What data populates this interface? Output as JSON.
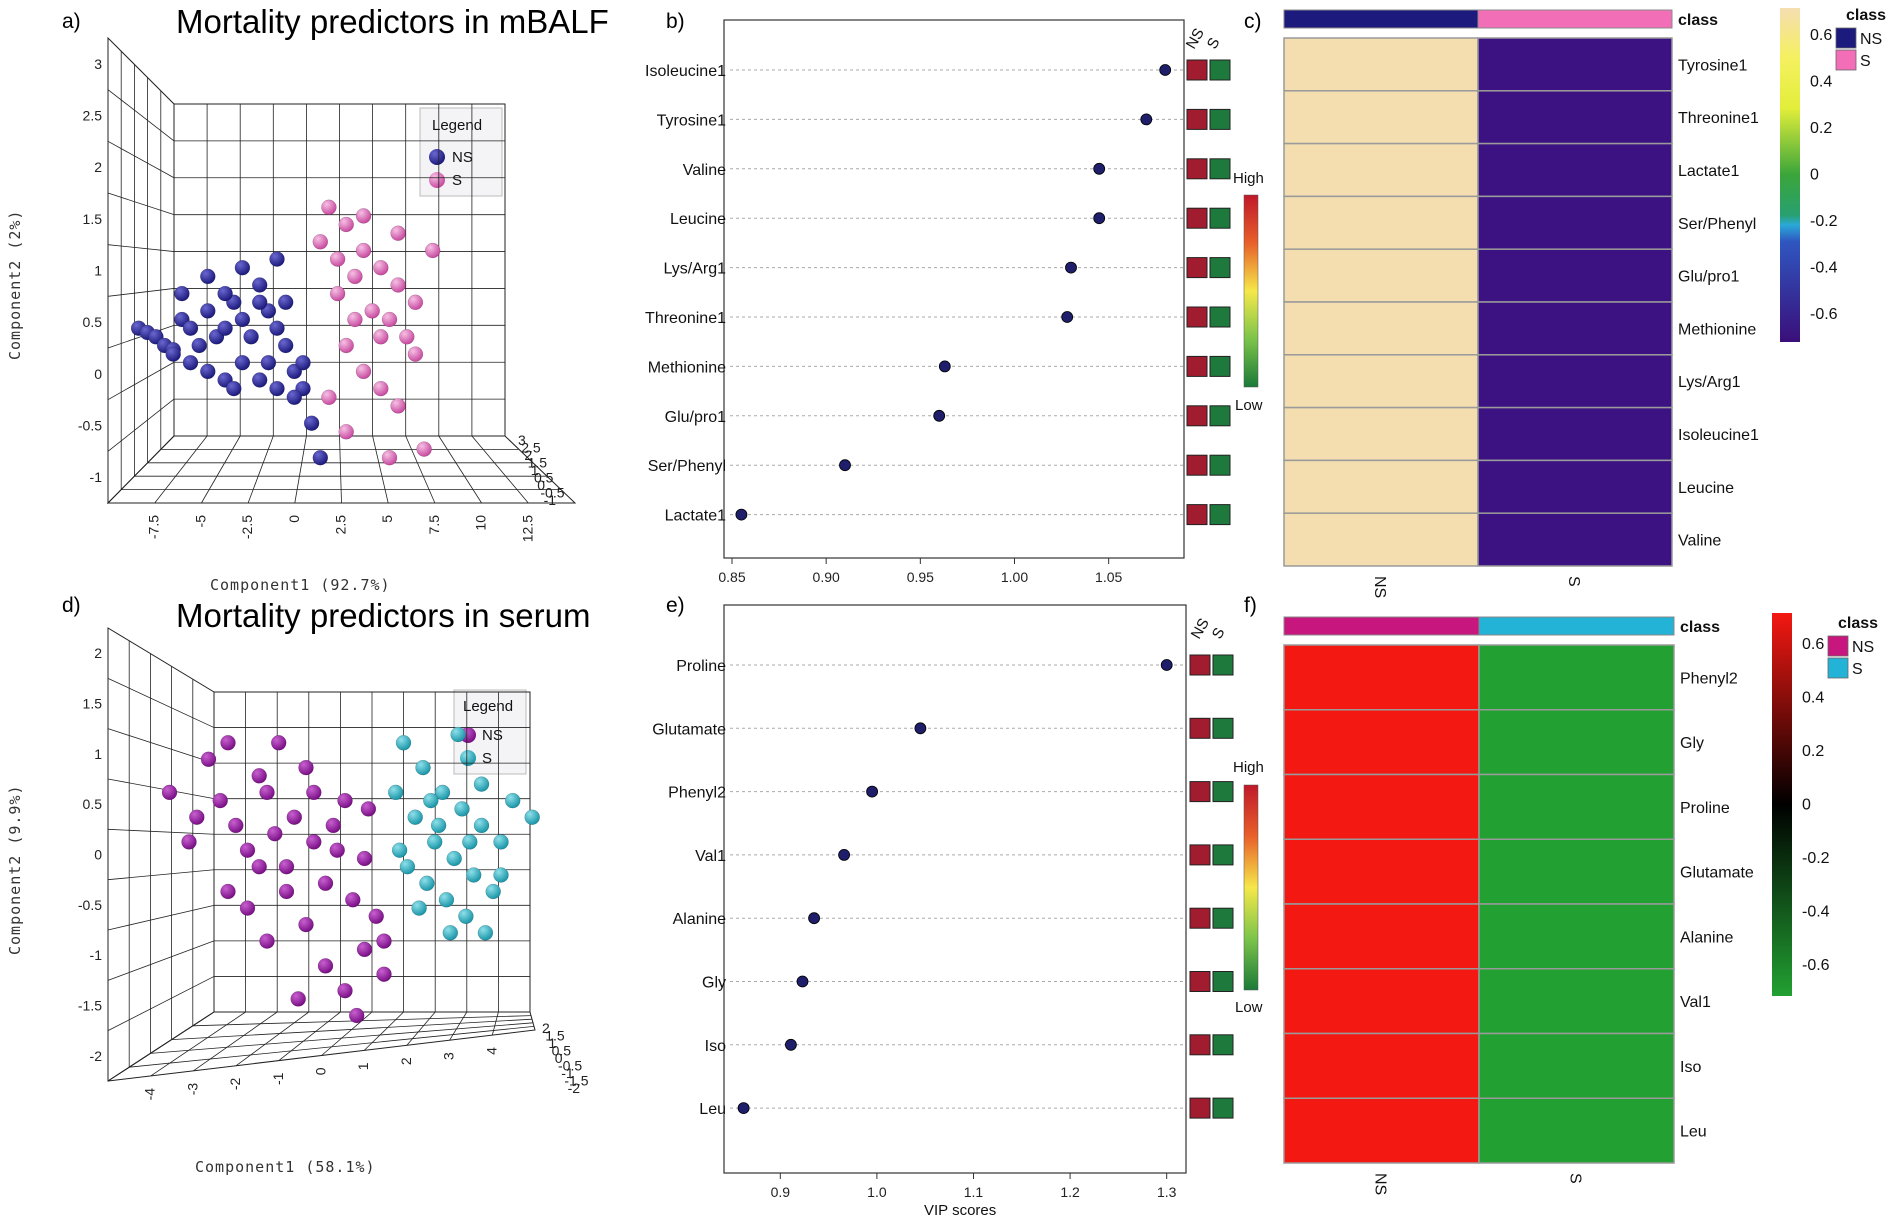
{
  "colors": {
    "ns_mbalf": "#1c1a7c",
    "s_mbalf": "#e06ab8",
    "ns_serum": "#8c1593",
    "s_serum": "#22a7b8",
    "class_pink": "#f26fb8",
    "class_magenta": "#c8167f",
    "class_cyan": "#23b3d6",
    "vip_dot": "#1e1e6a",
    "box_red": "#a11c2e",
    "box_green": "#1d7a3c",
    "hm_tan": "#f4deb0",
    "hm_indigo": "#3c1282",
    "hm_red": "#f41812",
    "hm_green": "#22a032"
  },
  "panel_labels": {
    "a": "a)",
    "b": "b)",
    "c": "c)",
    "d": "d)",
    "e": "e)",
    "f": "f)"
  },
  "chart_data": [
    {
      "id": "a",
      "type": "scatter",
      "title": "Mortality predictors in mBALF",
      "xlabel": "Component1 (92.7%)",
      "ylabel": "Component2 (2%)",
      "x_ticks": [
        "-7.5",
        "-5",
        "-2.5",
        "0",
        "2.5",
        "5",
        "7.5",
        "10",
        "12.5"
      ],
      "y_ticks": [
        "3",
        "2.5",
        "2",
        "1.5",
        "1",
        "0.5",
        "0",
        "-0.5",
        "-1"
      ],
      "z_ticks": [
        "3",
        "2.5",
        "2",
        "1.5",
        "1",
        "0.5",
        "0",
        "-0.5",
        "-1"
      ],
      "legend_title": "Legend",
      "legend": [
        "NS",
        "S"
      ],
      "series": [
        {
          "name": "NS",
          "points": [
            [
              -9,
              0.3
            ],
            [
              -8.5,
              0.25
            ],
            [
              -8,
              0.2
            ],
            [
              -7.5,
              0.1
            ],
            [
              -7,
              0.05
            ],
            [
              -6.5,
              0.4
            ],
            [
              -6,
              0.3
            ],
            [
              -5.5,
              0.1
            ],
            [
              -5,
              0.5
            ],
            [
              -4.5,
              0.2
            ],
            [
              -4,
              0.3
            ],
            [
              -3.5,
              0.6
            ],
            [
              -3,
              0.4
            ],
            [
              -2.5,
              0.2
            ],
            [
              -2,
              0.8
            ],
            [
              -1.5,
              0.5
            ],
            [
              -1,
              0.3
            ],
            [
              -0.5,
              0.1
            ],
            [
              0,
              -0.2
            ],
            [
              0.5,
              -0.4
            ],
            [
              1,
              -0.8
            ],
            [
              1.5,
              -1.2
            ],
            [
              -7,
              0
            ],
            [
              -6,
              -0.1
            ],
            [
              -5,
              -0.2
            ],
            [
              -4,
              -0.3
            ],
            [
              -3,
              -0.1
            ],
            [
              -2,
              -0.3
            ],
            [
              -1,
              -0.4
            ],
            [
              0,
              -0.5
            ],
            [
              -6.5,
              0.7
            ],
            [
              -5,
              0.9
            ],
            [
              -3,
              1
            ],
            [
              -1,
              1.1
            ],
            [
              -4,
              0.7
            ],
            [
              -2,
              0.6
            ],
            [
              -0.5,
              0.6
            ],
            [
              -3.5,
              -0.4
            ],
            [
              -1.5,
              -0.1
            ],
            [
              0.5,
              -0.1
            ]
          ]
        },
        {
          "name": "S",
          "points": [
            [
              2,
              1.7
            ],
            [
              3,
              1.5
            ],
            [
              4,
              1.2
            ],
            [
              5,
              1
            ],
            [
              6,
              0.8
            ],
            [
              3.5,
              0.9
            ],
            [
              2.5,
              0.7
            ],
            [
              4.5,
              0.5
            ],
            [
              5.5,
              0.4
            ],
            [
              6.5,
              0.2
            ],
            [
              7,
              0
            ],
            [
              3,
              0.1
            ],
            [
              4,
              -0.2
            ],
            [
              5,
              -0.4
            ],
            [
              6,
              -0.6
            ],
            [
              2,
              -0.5
            ],
            [
              3,
              -0.9
            ],
            [
              5.5,
              -1.2
            ],
            [
              7.5,
              -1.1
            ],
            [
              1.5,
              1.3
            ],
            [
              2.5,
              1.1
            ],
            [
              4,
              1.6
            ],
            [
              6,
              1.4
            ],
            [
              8,
              1.2
            ],
            [
              7,
              0.6
            ],
            [
              3.5,
              0.4
            ],
            [
              5,
              0.2
            ]
          ]
        }
      ]
    },
    {
      "id": "b",
      "type": "scatter",
      "xlabel": "",
      "xlim": [
        0.85,
        1.09
      ],
      "x_ticks": [
        "0.85",
        "0.90",
        "0.95",
        "1.00",
        "1.05"
      ],
      "x_tick_values": [
        0.85,
        0.9,
        0.95,
        1.0,
        1.05
      ],
      "categories": [
        "Isoleucine1",
        "Tyrosine1",
        "Valine",
        "Leucine",
        "Lys/Arg1",
        "Threonine1",
        "Methionine",
        "Glu/pro1",
        "Ser/Phenyl",
        "Lactate1"
      ],
      "values": [
        1.08,
        1.07,
        1.045,
        1.045,
        1.03,
        1.028,
        0.963,
        0.96,
        0.91,
        0.855
      ],
      "box_headers": [
        "NS",
        "S"
      ],
      "scale_labels": [
        "High",
        "Low"
      ]
    },
    {
      "id": "c",
      "type": "heatmap",
      "columns": [
        "NS",
        "S"
      ],
      "class_label": "class",
      "rows": [
        "Tyrosine1",
        "Threonine1",
        "Lactate1",
        "Ser/Phenyl",
        "Glu/pro1",
        "Methionine",
        "Lys/Arg1",
        "Isoleucine1",
        "Leucine",
        "Valine"
      ],
      "values": [
        [
          0.6,
          -0.6
        ],
        [
          0.6,
          -0.6
        ],
        [
          0.6,
          -0.6
        ],
        [
          0.6,
          -0.6
        ],
        [
          0.6,
          -0.6
        ],
        [
          0.6,
          -0.6
        ],
        [
          0.6,
          -0.6
        ],
        [
          0.6,
          -0.6
        ],
        [
          0.6,
          -0.6
        ],
        [
          0.6,
          -0.6
        ]
      ],
      "colorbar_ticks": [
        "0.6",
        "0.4",
        "0.2",
        "0",
        "-0.2",
        "-0.4",
        "-0.6"
      ],
      "legend_title": "class",
      "legend": [
        "NS",
        "S"
      ]
    },
    {
      "id": "d",
      "type": "scatter",
      "title": "Mortality predictors in serum",
      "xlabel": "Component1 (58.1%)",
      "ylabel": "Component2 (9.9%)",
      "x_ticks": [
        "-4",
        "-3",
        "-2",
        "-1",
        "0",
        "1",
        "2",
        "3",
        "4"
      ],
      "y_ticks": [
        "2",
        "1.5",
        "1",
        "0.5",
        "0",
        "-0.5",
        "-1",
        "-1.5",
        "-2"
      ],
      "z_ticks": [
        "2",
        "1.5",
        "1",
        "0.5",
        "0",
        "-0.5",
        "-1",
        "-1.5",
        "-2"
      ],
      "legend_title": "Legend",
      "legend": [
        "NS",
        "S"
      ],
      "series": [
        {
          "name": "NS",
          "points": [
            [
              -4.5,
              0.9
            ],
            [
              -4,
              0.3
            ],
            [
              -3.8,
              0.6
            ],
            [
              -3.5,
              1.3
            ],
            [
              -3.2,
              0.8
            ],
            [
              -3,
              1.5
            ],
            [
              -2.8,
              0.5
            ],
            [
              -2.5,
              0.2
            ],
            [
              -2.2,
              1.1
            ],
            [
              -2,
              0.9
            ],
            [
              -1.8,
              0.4
            ],
            [
              -1.5,
              0
            ],
            [
              -1.3,
              0.6
            ],
            [
              -1,
              1.2
            ],
            [
              -0.8,
              0.3
            ],
            [
              -0.5,
              -0.2
            ],
            [
              -0.3,
              0.5
            ],
            [
              0,
              0.8
            ],
            [
              0.2,
              -0.4
            ],
            [
              0.5,
              0.1
            ],
            [
              0.8,
              -0.6
            ],
            [
              1,
              -0.9
            ],
            [
              -2.5,
              -0.5
            ],
            [
              -2,
              -0.9
            ],
            [
              -1.5,
              -0.3
            ],
            [
              -1,
              -0.7
            ],
            [
              -0.5,
              -1.2
            ],
            [
              0,
              -1.5
            ],
            [
              0.5,
              -1
            ],
            [
              1,
              -1.3
            ],
            [
              -1.2,
              -1.6
            ],
            [
              0.3,
              -1.8
            ],
            [
              -3,
              -0.3
            ],
            [
              -2.2,
              0
            ],
            [
              -0.8,
              0.9
            ],
            [
              0.6,
              0.7
            ],
            [
              -1.7,
              1.5
            ],
            [
              -0.2,
              0.2
            ]
          ]
        },
        {
          "name": "S",
          "points": [
            [
              1.5,
              1.5
            ],
            [
              2,
              1.2
            ],
            [
              2.5,
              0.9
            ],
            [
              3,
              0.7
            ],
            [
              3.5,
              0.5
            ],
            [
              4,
              0.3
            ],
            [
              1.8,
              0.6
            ],
            [
              2.3,
              0.3
            ],
            [
              2.8,
              0.1
            ],
            [
              3.3,
              -0.1
            ],
            [
              3.8,
              -0.3
            ],
            [
              1.6,
              0
            ],
            [
              2.1,
              -0.2
            ],
            [
              2.6,
              -0.4
            ],
            [
              3.1,
              -0.6
            ],
            [
              3.6,
              -0.8
            ],
            [
              4.3,
              0.8
            ],
            [
              4.8,
              0.6
            ],
            [
              2.9,
              1.6
            ],
            [
              1.3,
              0.9
            ],
            [
              2.4,
              0.5
            ],
            [
              3.2,
              0.3
            ],
            [
              1.9,
              -0.5
            ],
            [
              2.7,
              -0.8
            ],
            [
              4,
              -0.1
            ],
            [
              3.5,
              1
            ],
            [
              1.4,
              0.2
            ],
            [
              2.2,
              0.8
            ]
          ]
        }
      ]
    },
    {
      "id": "e",
      "type": "scatter",
      "xlabel": "VIP scores",
      "xlim": [
        0.85,
        1.32
      ],
      "x_ticks": [
        "0.9",
        "1.0",
        "1.1",
        "1.2",
        "1.3"
      ],
      "x_tick_values": [
        0.9,
        1.0,
        1.1,
        1.2,
        1.3
      ],
      "categories": [
        "Proline",
        "Glutamate",
        "Phenyl2",
        "Val1",
        "Alanine",
        "Gly",
        "Iso",
        "Leu"
      ],
      "values": [
        1.3,
        1.045,
        0.995,
        0.966,
        0.935,
        0.923,
        0.911,
        0.862
      ],
      "box_headers": [
        "NS",
        "S"
      ],
      "scale_labels": [
        "High",
        "Low"
      ]
    },
    {
      "id": "f",
      "type": "heatmap",
      "columns": [
        "NS",
        "S"
      ],
      "class_label": "class",
      "rows": [
        "Phenyl2",
        "Gly",
        "Proline",
        "Glutamate",
        "Alanine",
        "Val1",
        "Iso",
        "Leu"
      ],
      "values": [
        [
          0.6,
          -0.6
        ],
        [
          0.6,
          -0.6
        ],
        [
          0.6,
          -0.6
        ],
        [
          0.6,
          -0.6
        ],
        [
          0.6,
          -0.6
        ],
        [
          0.6,
          -0.6
        ],
        [
          0.6,
          -0.6
        ],
        [
          0.6,
          -0.6
        ]
      ],
      "colorbar_ticks": [
        "0.6",
        "0.4",
        "0.2",
        "0",
        "-0.2",
        "-0.4",
        "-0.6"
      ],
      "legend_title": "class",
      "legend": [
        "NS",
        "S"
      ]
    }
  ]
}
